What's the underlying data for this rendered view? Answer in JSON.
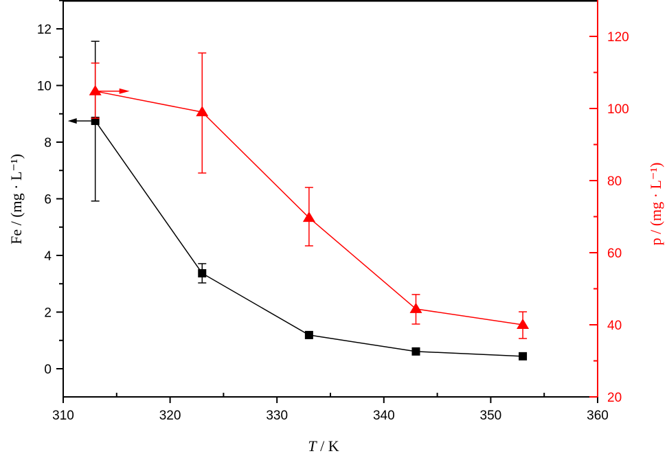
{
  "chart_data": {
    "type": "line",
    "title": "",
    "xlabel": "T / K",
    "xlabel_italic_part": "T",
    "xlabel_rest": " / K",
    "ylabel_left": "Fe / (mg · L⁻¹)",
    "ylabel_right": "p / (mg · L⁻¹)",
    "xlim": [
      310,
      360
    ],
    "ylim_left": [
      -1,
      13
    ],
    "ylim_right": [
      20,
      130
    ],
    "x_ticks": [
      310,
      320,
      330,
      340,
      350,
      360
    ],
    "y_left_ticks": [
      0,
      2,
      4,
      6,
      8,
      10,
      12
    ],
    "y_right_ticks": [
      20,
      40,
      60,
      80,
      100,
      120
    ],
    "grid": false,
    "legend": "none (arrows indicate axis association)",
    "x": [
      313,
      323,
      333,
      343,
      353
    ],
    "series": [
      {
        "name": "Fe",
        "axis": "left",
        "color": "#000000",
        "marker": "square",
        "values": [
          8.75,
          3.37,
          1.19,
          0.61,
          0.44
        ],
        "error_upper": [
          11.56,
          3.71,
          null,
          null,
          null
        ],
        "error_lower": [
          5.92,
          3.03,
          null,
          null,
          null
        ]
      },
      {
        "name": "p",
        "axis": "right",
        "color": "#ff0000",
        "marker": "triangle",
        "values": [
          104.8,
          99.0,
          69.7,
          44.4,
          40.0
        ],
        "error_upper": [
          112.6,
          115.4,
          78.1,
          48.4,
          43.6
        ],
        "error_lower": [
          97.3,
          82.1,
          61.9,
          40.2,
          36.2
        ]
      }
    ]
  }
}
